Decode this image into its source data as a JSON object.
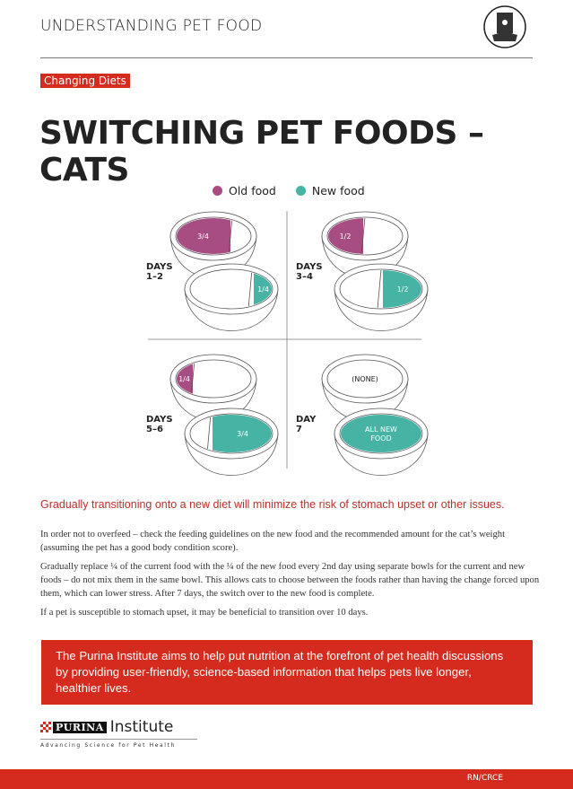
{
  "header": {
    "title": "UNDERSTANDING PET FOOD",
    "icon": "pet-food-bag-icon"
  },
  "tag": "Changing Diets",
  "title": "SWITCHING PET FOODS – CATS",
  "legend": [
    {
      "label": "Old food",
      "color": "#a84d84"
    },
    {
      "label": "New food",
      "color": "#47b3a4"
    }
  ],
  "steps": [
    {
      "days": [
        "DAYS",
        "1–2"
      ],
      "old": {
        "fraction": 0.75,
        "label": "3/4"
      },
      "new": {
        "fraction": 0.25,
        "label": "1/4"
      }
    },
    {
      "days": [
        "DAYS",
        "3–4"
      ],
      "old": {
        "fraction": 0.5,
        "label": "1/2"
      },
      "new": {
        "fraction": 0.5,
        "label": "1/2"
      }
    },
    {
      "days": [
        "DAYS",
        "5–6"
      ],
      "old": {
        "fraction": 0.25,
        "label": "1/4"
      },
      "new": {
        "fraction": 0.75,
        "label": "3/4"
      }
    },
    {
      "days": [
        "DAY",
        "7"
      ],
      "old": {
        "fraction": 0,
        "label": "(NONE)"
      },
      "new": {
        "fraction": 1,
        "label": "ALL NEW FOOD"
      }
    }
  ],
  "lead": "Gradually transitioning onto a new diet will minimize the risk of stomach upset or other issues.",
  "paragraphs": [
    "In order not to overfeed – check the feeding guidelines on the new food and the recommended amount for the cat’s weight (assuming the pet has a good body condition score).",
    "Gradually replace ¼ of the current food with the ¼ of the new food every 2nd day using separate bowls for the current and new foods – do not mix them in the same bowl. This allows cats to choose between the foods rather than having the change forced upon them, which can lower stress. After 7 days, the switch over to the new food is complete.",
    "If a pet is susceptible to stomach upset, it may be beneficial to transition over 10 days."
  ],
  "banner": "The Purina Institute aims to help put nutrition at the forefront of pet health discussions by providing user-friendly, science-based information that helps pets live longer, healthier lives.",
  "logo": {
    "brand": "PURINA",
    "name": "Institute",
    "tagline": "Advancing Science for Pet Health"
  },
  "footer": {
    "code": "RN/CRCE"
  },
  "colors": {
    "accent": "#d52b1e",
    "old": "#a84d84",
    "new": "#47b3a4"
  }
}
